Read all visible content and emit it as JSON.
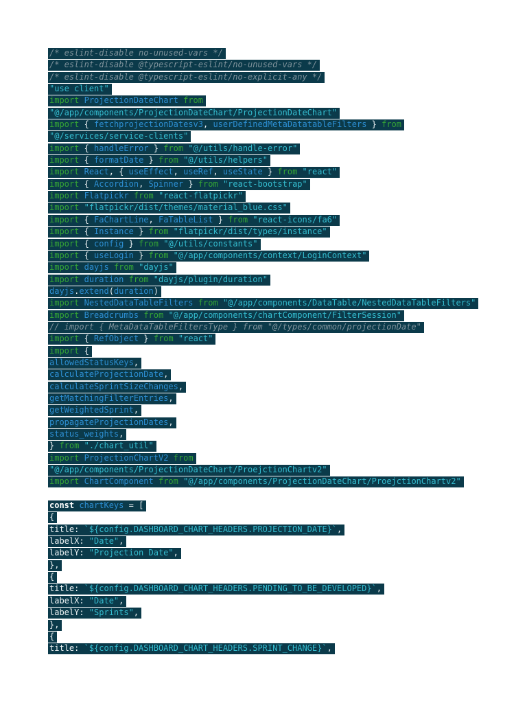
{
  "page": {
    "background": "#ffffff"
  },
  "palette": {
    "line_background": "#0b3a4a",
    "comment": "#7f929b",
    "keyword": "#35a635",
    "identifier": "#2d8fd3",
    "string": "#35bdd0",
    "plain": "#eef3f5",
    "declaration": "#ffffff"
  },
  "code": {
    "language": "typescript",
    "lines": [
      [
        [
          "cm",
          "/* eslint-disable no-unused-vars */"
        ]
      ],
      [
        [
          "cm",
          "/* eslint-disable @typescript-eslint/no-unused-vars */"
        ]
      ],
      [
        [
          "cm",
          "/* eslint-disable @typescript-eslint/no-explicit-any */"
        ]
      ],
      [
        [
          "str",
          "\"use client\""
        ]
      ],
      [
        [
          "kw",
          "import"
        ],
        [
          "pl",
          " "
        ],
        [
          "id",
          "ProjectionDateChart"
        ],
        [
          "pl",
          " "
        ],
        [
          "kw",
          "from"
        ]
      ],
      [
        [
          "str",
          "\"@/app/components/ProjectionDateChart/ProjectionDateChart\""
        ]
      ],
      [
        [
          "kw",
          "import"
        ],
        [
          "pl",
          " { "
        ],
        [
          "id",
          "fetchprojectionDatesv3"
        ],
        [
          "pl",
          ", "
        ],
        [
          "id",
          "userDefinedMetaDatatableFilters"
        ],
        [
          "pl",
          " } "
        ],
        [
          "kw",
          "from"
        ]
      ],
      [
        [
          "str",
          "\"@/services/service-clients\""
        ]
      ],
      [
        [
          "kw",
          "import"
        ],
        [
          "pl",
          " { "
        ],
        [
          "id",
          "handleError"
        ],
        [
          "pl",
          " } "
        ],
        [
          "kw",
          "from"
        ],
        [
          "pl",
          " "
        ],
        [
          "str",
          "\"@/utils/handle-error\""
        ]
      ],
      [
        [
          "kw",
          "import"
        ],
        [
          "pl",
          " { "
        ],
        [
          "id",
          "formatDate"
        ],
        [
          "pl",
          " } "
        ],
        [
          "kw",
          "from"
        ],
        [
          "pl",
          " "
        ],
        [
          "str",
          "\"@/utils/helpers\""
        ]
      ],
      [
        [
          "kw",
          "import"
        ],
        [
          "pl",
          " "
        ],
        [
          "id",
          "React"
        ],
        [
          "pl",
          ", { "
        ],
        [
          "id",
          "useEffect"
        ],
        [
          "pl",
          ", "
        ],
        [
          "id",
          "useRef"
        ],
        [
          "pl",
          ", "
        ],
        [
          "id",
          "useState"
        ],
        [
          "pl",
          " } "
        ],
        [
          "kw",
          "from"
        ],
        [
          "pl",
          " "
        ],
        [
          "str",
          "\"react\""
        ]
      ],
      [
        [
          "kw",
          "import"
        ],
        [
          "pl",
          " { "
        ],
        [
          "id",
          "Accordion"
        ],
        [
          "pl",
          ", "
        ],
        [
          "id",
          "Spinner"
        ],
        [
          "pl",
          " } "
        ],
        [
          "kw",
          "from"
        ],
        [
          "pl",
          " "
        ],
        [
          "str",
          "\"react-bootstrap\""
        ]
      ],
      [
        [
          "kw",
          "import"
        ],
        [
          "pl",
          " "
        ],
        [
          "id",
          "Flatpickr"
        ],
        [
          "pl",
          " "
        ],
        [
          "kw",
          "from"
        ],
        [
          "pl",
          " "
        ],
        [
          "str",
          "\"react-flatpickr\""
        ]
      ],
      [
        [
          "kw",
          "import"
        ],
        [
          "pl",
          " "
        ],
        [
          "str",
          "\"flatpickr/dist/themes/material_blue.css\""
        ]
      ],
      [
        [
          "kw",
          "import"
        ],
        [
          "pl",
          " { "
        ],
        [
          "id",
          "FaChartLine"
        ],
        [
          "pl",
          ", "
        ],
        [
          "id",
          "FaTableList"
        ],
        [
          "pl",
          " } "
        ],
        [
          "kw",
          "from"
        ],
        [
          "pl",
          " "
        ],
        [
          "str",
          "\"react-icons/fa6\""
        ]
      ],
      [
        [
          "kw",
          "import"
        ],
        [
          "pl",
          " { "
        ],
        [
          "id",
          "Instance"
        ],
        [
          "pl",
          " } "
        ],
        [
          "kw",
          "from"
        ],
        [
          "pl",
          " "
        ],
        [
          "str",
          "\"flatpickr/dist/types/instance\""
        ]
      ],
      [
        [
          "kw",
          "import"
        ],
        [
          "pl",
          " { "
        ],
        [
          "id",
          "config"
        ],
        [
          "pl",
          " } "
        ],
        [
          "kw",
          "from"
        ],
        [
          "pl",
          " "
        ],
        [
          "str",
          "\"@/utils/constants\""
        ]
      ],
      [
        [
          "kw",
          "import"
        ],
        [
          "pl",
          " { "
        ],
        [
          "id",
          "useLogin"
        ],
        [
          "pl",
          " } "
        ],
        [
          "kw",
          "from"
        ],
        [
          "pl",
          " "
        ],
        [
          "str",
          "\"@/app/components/context/LoginContext\""
        ]
      ],
      [
        [
          "kw",
          "import"
        ],
        [
          "pl",
          " "
        ],
        [
          "id",
          "dayjs"
        ],
        [
          "pl",
          " "
        ],
        [
          "kw",
          "from"
        ],
        [
          "pl",
          " "
        ],
        [
          "str",
          "\"dayjs\""
        ]
      ],
      [
        [
          "kw",
          "import"
        ],
        [
          "pl",
          " "
        ],
        [
          "id",
          "duration"
        ],
        [
          "pl",
          " "
        ],
        [
          "kw",
          "from"
        ],
        [
          "pl",
          " "
        ],
        [
          "str",
          "\"dayjs/plugin/duration\""
        ]
      ],
      [
        [
          "id",
          "dayjs"
        ],
        [
          "pl",
          "."
        ],
        [
          "id",
          "extend"
        ],
        [
          "pl",
          "("
        ],
        [
          "id",
          "duration"
        ],
        [
          "pl",
          ")"
        ]
      ],
      [
        [
          "kw",
          "import"
        ],
        [
          "pl",
          " "
        ],
        [
          "id",
          "NestedDataTableFilters"
        ],
        [
          "pl",
          " "
        ],
        [
          "kw",
          "from"
        ],
        [
          "pl",
          " "
        ],
        [
          "str",
          "\"@/app/components/DataTable/NestedDataTableFilters\""
        ]
      ],
      [
        [
          "kw",
          "import"
        ],
        [
          "pl",
          " "
        ],
        [
          "id",
          "Breadcrumbs"
        ],
        [
          "pl",
          " "
        ],
        [
          "kw",
          "from"
        ],
        [
          "pl",
          " "
        ],
        [
          "str",
          "\"@/app/components/chartComponent/FilterSession\""
        ]
      ],
      [
        [
          "cm",
          "// import { MetaDataTableFiltersType } from \"@/types/common/projectionDate\""
        ]
      ],
      [
        [
          "kw",
          "import"
        ],
        [
          "pl",
          " { "
        ],
        [
          "id",
          "RefObject"
        ],
        [
          "pl",
          " } "
        ],
        [
          "kw",
          "from"
        ],
        [
          "pl",
          " "
        ],
        [
          "str",
          "\"react\""
        ]
      ],
      [
        [
          "kw",
          "import"
        ],
        [
          "pl",
          " {"
        ]
      ],
      [
        [
          "id",
          "allowedStatusKeys"
        ],
        [
          "pl",
          ","
        ]
      ],
      [
        [
          "id",
          "calculateProjectionDate"
        ],
        [
          "pl",
          ","
        ]
      ],
      [
        [
          "id",
          "calculateSprintSizeChanges"
        ],
        [
          "pl",
          ","
        ]
      ],
      [
        [
          "id",
          "getMatchingFilterEntries"
        ],
        [
          "pl",
          ","
        ]
      ],
      [
        [
          "id",
          "getWeightedSprint"
        ],
        [
          "pl",
          ","
        ]
      ],
      [
        [
          "id",
          "propagateProjectionDates"
        ],
        [
          "pl",
          ","
        ]
      ],
      [
        [
          "id",
          "status_weights"
        ],
        [
          "pl",
          ","
        ]
      ],
      [
        [
          "pl",
          "} "
        ],
        [
          "kw",
          "from"
        ],
        [
          "pl",
          " "
        ],
        [
          "str",
          "\"./chart_util\""
        ]
      ],
      [
        [
          "kw",
          "import"
        ],
        [
          "pl",
          " "
        ],
        [
          "id",
          "ProjectionChartV2"
        ],
        [
          "pl",
          " "
        ],
        [
          "kw",
          "from"
        ]
      ],
      [
        [
          "str",
          "\"@/app/components/ProjectionDateChart/ProejctionChartv2\""
        ]
      ],
      [
        [
          "kw",
          "import"
        ],
        [
          "pl",
          " "
        ],
        [
          "id",
          "ChartComponent"
        ],
        [
          "pl",
          " "
        ],
        [
          "kw",
          "from"
        ],
        [
          "pl",
          " "
        ],
        [
          "str",
          "\"@/app/components/ProjectionDateChart/ProejctionChartv2\""
        ]
      ],
      [],
      [
        [
          "kw2",
          "const"
        ],
        [
          "pl",
          " "
        ],
        [
          "id",
          "chartKeys"
        ],
        [
          "pl",
          " = ["
        ]
      ],
      [
        [
          "pl",
          "{"
        ]
      ],
      [
        [
          "pl",
          "title: "
        ],
        [
          "str",
          "`${config.DASHBOARD_CHART_HEADERS.PROJECTION_DATE}`"
        ],
        [
          "pl",
          ","
        ]
      ],
      [
        [
          "pl",
          "labelX: "
        ],
        [
          "str",
          "\"Date\""
        ],
        [
          "pl",
          ","
        ]
      ],
      [
        [
          "pl",
          "labelY: "
        ],
        [
          "str",
          "\"Projection Date\""
        ],
        [
          "pl",
          ","
        ]
      ],
      [
        [
          "pl",
          "},"
        ]
      ],
      [
        [
          "pl",
          "{"
        ]
      ],
      [
        [
          "pl",
          "title: "
        ],
        [
          "str",
          "`${config.DASHBOARD_CHART_HEADERS.PENDING_TO_BE_DEVELOPED}`"
        ],
        [
          "pl",
          ","
        ]
      ],
      [
        [
          "pl",
          "labelX: "
        ],
        [
          "str",
          "\"Date\""
        ],
        [
          "pl",
          ","
        ]
      ],
      [
        [
          "pl",
          "labelY: "
        ],
        [
          "str",
          "\"Sprints\""
        ],
        [
          "pl",
          ","
        ]
      ],
      [
        [
          "pl",
          "},"
        ]
      ],
      [
        [
          "pl",
          "{"
        ]
      ],
      [
        [
          "pl",
          "title: "
        ],
        [
          "str",
          "`${config.DASHBOARD_CHART_HEADERS.SPRINT_CHANGE}`"
        ],
        [
          "pl",
          ","
        ]
      ]
    ]
  }
}
